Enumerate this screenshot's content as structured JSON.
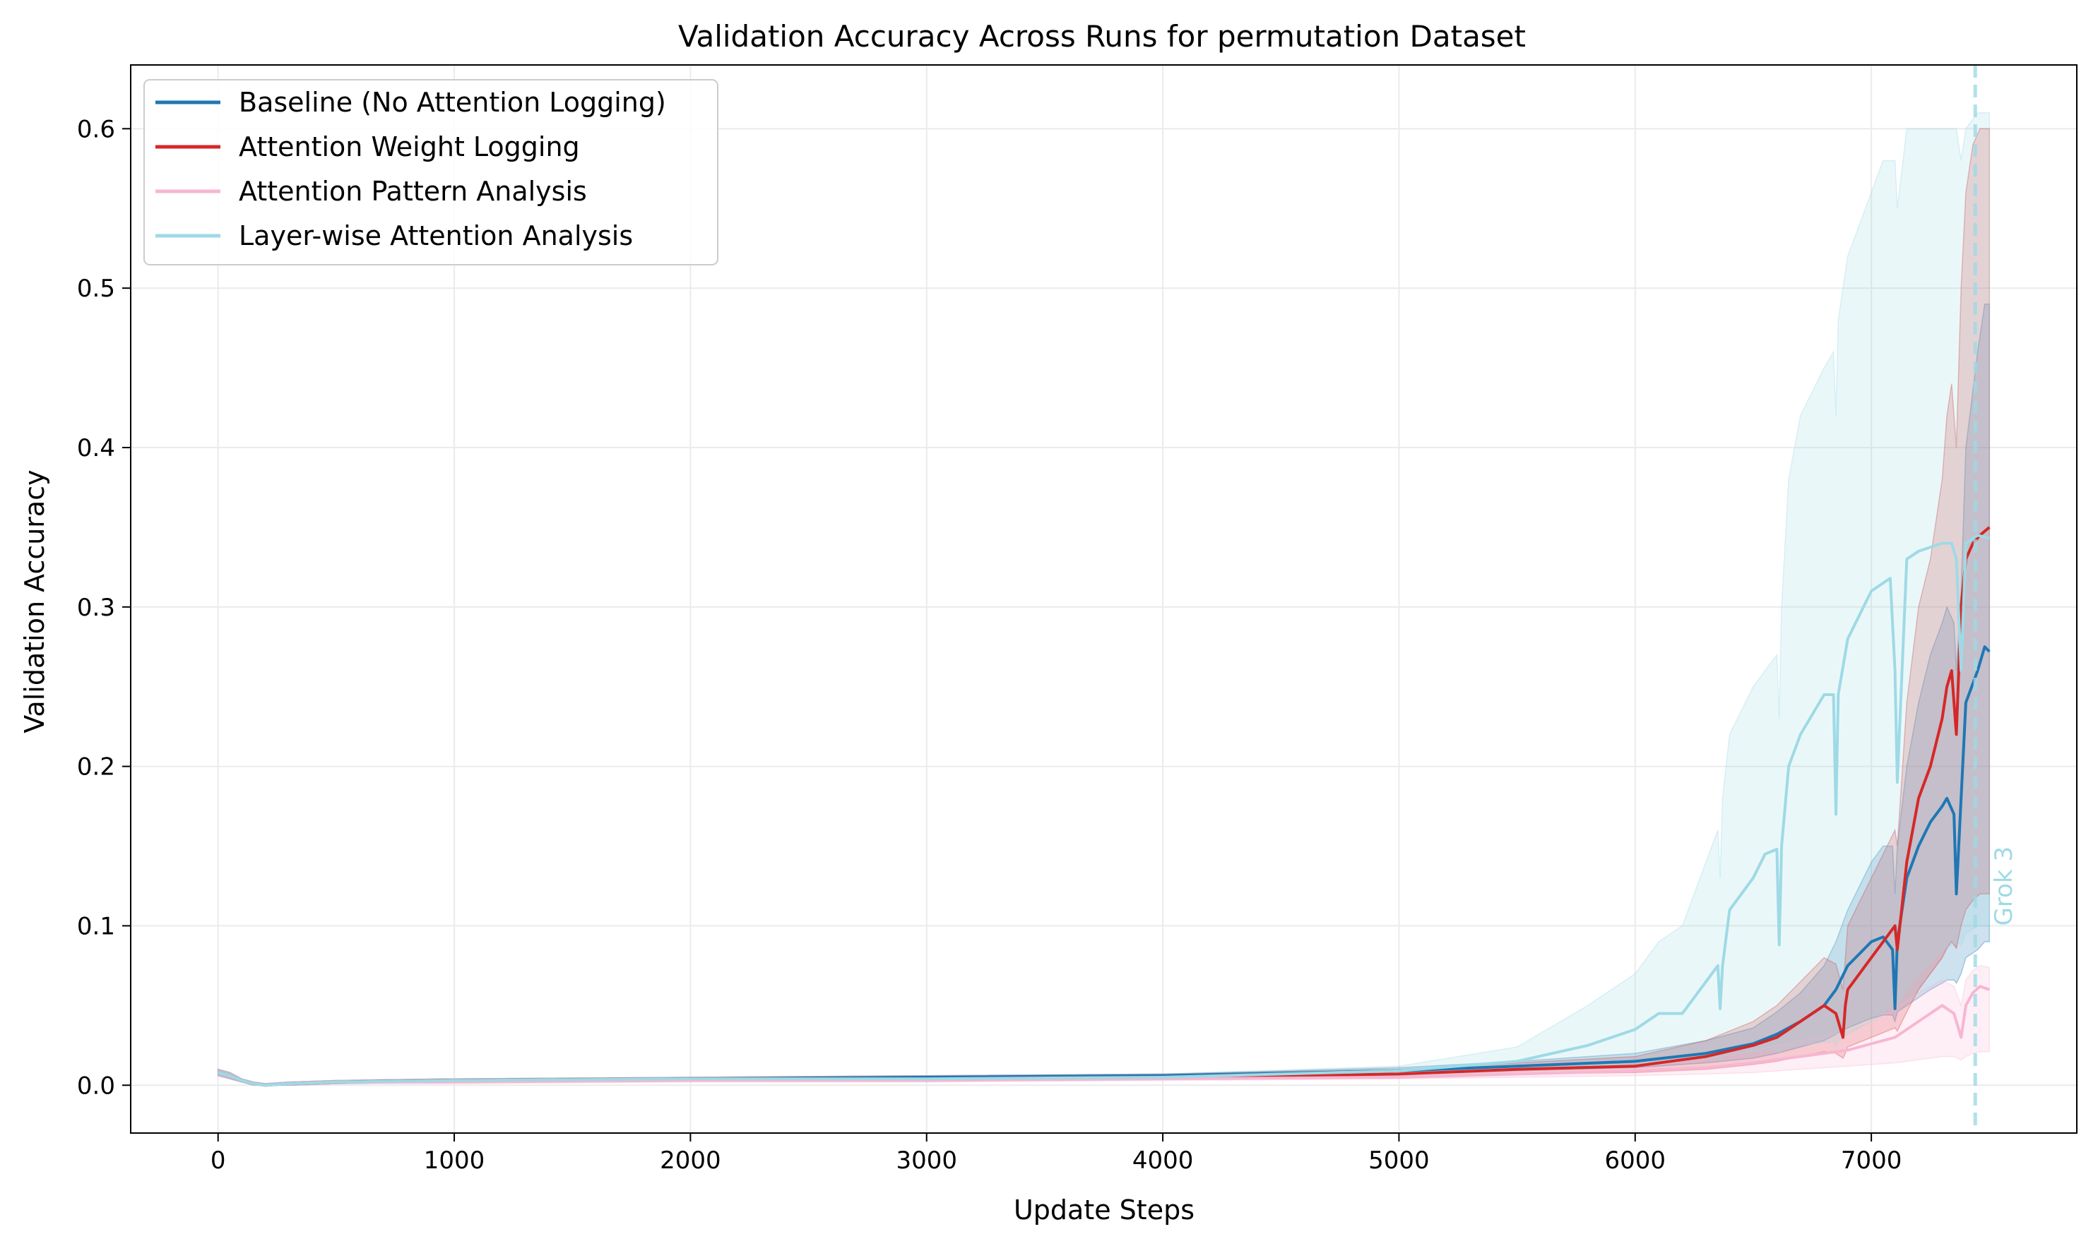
{
  "chart_data": {
    "type": "line",
    "title": "Validation Accuracy Across Runs for permutation Dataset",
    "xlabel": "Update Steps",
    "ylabel": "Validation Accuracy",
    "xlim": [
      -370,
      7870
    ],
    "ylim": [
      -0.03,
      0.64
    ],
    "xticks": [
      0,
      1000,
      2000,
      3000,
      4000,
      5000,
      6000,
      7000
    ],
    "yticks": [
      0.0,
      0.1,
      0.2,
      0.3,
      0.4,
      0.5,
      0.6
    ],
    "xtick_labels": [
      "0",
      "1000",
      "2000",
      "3000",
      "4000",
      "5000",
      "6000",
      "7000"
    ],
    "ytick_labels": [
      "0.0",
      "0.1",
      "0.2",
      "0.3",
      "0.4",
      "0.5",
      "0.6"
    ],
    "grid": true,
    "legend_position": "top-left",
    "annotation": {
      "label": "Grok 3",
      "x": 7440,
      "color": "#9edae5"
    },
    "series": [
      {
        "name": "Baseline (No Attention Logging)",
        "color": "#1f77b4",
        "x": [
          0,
          50,
          100,
          150,
          200,
          300,
          500,
          1000,
          2000,
          3000,
          4000,
          5000,
          5500,
          6000,
          6300,
          6500,
          6600,
          6700,
          6800,
          6850,
          6900,
          7000,
          7050,
          7090,
          7100,
          7110,
          7150,
          7200,
          7250,
          7300,
          7320,
          7350,
          7360,
          7380,
          7400,
          7450,
          7480,
          7500
        ],
        "y": [
          0.008,
          0.006,
          0.003,
          0.001,
          0.0,
          0.001,
          0.002,
          0.003,
          0.004,
          0.005,
          0.006,
          0.009,
          0.012,
          0.015,
          0.02,
          0.026,
          0.032,
          0.04,
          0.05,
          0.06,
          0.075,
          0.09,
          0.093,
          0.085,
          0.048,
          0.09,
          0.13,
          0.15,
          0.165,
          0.175,
          0.18,
          0.17,
          0.12,
          0.18,
          0.24,
          0.26,
          0.275,
          0.272
        ],
        "band_low": [
          0.006,
          0.004,
          0.002,
          0.0,
          0.0,
          0.0,
          0.001,
          0.002,
          0.003,
          0.004,
          0.005,
          0.007,
          0.009,
          0.011,
          0.014,
          0.017,
          0.02,
          0.024,
          0.028,
          0.032,
          0.036,
          0.042,
          0.044,
          0.044,
          0.04,
          0.046,
          0.05,
          0.055,
          0.06,
          0.064,
          0.066,
          0.066,
          0.064,
          0.07,
          0.08,
          0.085,
          0.09,
          0.09
        ],
        "band_high": [
          0.01,
          0.008,
          0.004,
          0.002,
          0.001,
          0.002,
          0.003,
          0.004,
          0.005,
          0.006,
          0.007,
          0.011,
          0.015,
          0.02,
          0.028,
          0.036,
          0.046,
          0.058,
          0.075,
          0.09,
          0.11,
          0.14,
          0.15,
          0.15,
          0.12,
          0.15,
          0.2,
          0.24,
          0.27,
          0.29,
          0.3,
          0.29,
          0.26,
          0.31,
          0.4,
          0.46,
          0.49,
          0.49
        ]
      },
      {
        "name": "Attention Weight Logging",
        "color": "#d62728",
        "x": [
          0,
          50,
          100,
          150,
          200,
          300,
          500,
          1000,
          2000,
          3000,
          4000,
          5000,
          5500,
          6000,
          6300,
          6500,
          6600,
          6700,
          6800,
          6850,
          6880,
          6890,
          6900,
          7000,
          7100,
          7110,
          7150,
          7200,
          7250,
          7300,
          7320,
          7340,
          7360,
          7380,
          7400,
          7430,
          7460,
          7500
        ],
        "y": [
          0.008,
          0.006,
          0.003,
          0.001,
          0.0,
          0.001,
          0.002,
          0.003,
          0.004,
          0.004,
          0.005,
          0.007,
          0.01,
          0.012,
          0.018,
          0.025,
          0.03,
          0.04,
          0.05,
          0.045,
          0.03,
          0.05,
          0.06,
          0.08,
          0.1,
          0.085,
          0.14,
          0.18,
          0.2,
          0.23,
          0.25,
          0.26,
          0.22,
          0.3,
          0.33,
          0.34,
          0.345,
          0.35
        ],
        "band_low": [
          0.006,
          0.004,
          0.002,
          0.0,
          0.0,
          0.0,
          0.001,
          0.002,
          0.003,
          0.003,
          0.004,
          0.005,
          0.007,
          0.008,
          0.01,
          0.013,
          0.015,
          0.018,
          0.021,
          0.02,
          0.017,
          0.02,
          0.024,
          0.03,
          0.036,
          0.034,
          0.046,
          0.06,
          0.07,
          0.08,
          0.086,
          0.09,
          0.086,
          0.1,
          0.11,
          0.116,
          0.12,
          0.12
        ],
        "band_high": [
          0.01,
          0.008,
          0.004,
          0.002,
          0.001,
          0.002,
          0.003,
          0.004,
          0.005,
          0.006,
          0.007,
          0.01,
          0.014,
          0.018,
          0.028,
          0.04,
          0.05,
          0.065,
          0.08,
          0.076,
          0.06,
          0.08,
          0.1,
          0.13,
          0.16,
          0.15,
          0.24,
          0.3,
          0.33,
          0.38,
          0.42,
          0.44,
          0.4,
          0.5,
          0.56,
          0.59,
          0.6,
          0.6
        ]
      },
      {
        "name": "Attention Pattern Analysis",
        "color": "#f7b6d2",
        "x": [
          0,
          50,
          100,
          150,
          200,
          300,
          500,
          1000,
          2000,
          3000,
          4000,
          5000,
          5500,
          6000,
          6300,
          6500,
          6700,
          6900,
          7000,
          7100,
          7200,
          7300,
          7350,
          7380,
          7400,
          7430,
          7460,
          7500
        ],
        "y": [
          0.008,
          0.006,
          0.003,
          0.001,
          0.0,
          0.001,
          0.002,
          0.002,
          0.003,
          0.003,
          0.004,
          0.005,
          0.007,
          0.009,
          0.011,
          0.014,
          0.018,
          0.022,
          0.026,
          0.03,
          0.04,
          0.05,
          0.045,
          0.03,
          0.05,
          0.058,
          0.062,
          0.06
        ],
        "band_low": [
          0.006,
          0.004,
          0.002,
          0.0,
          0.0,
          0.0,
          0.001,
          0.001,
          0.002,
          0.002,
          0.003,
          0.004,
          0.005,
          0.006,
          0.007,
          0.008,
          0.01,
          0.012,
          0.013,
          0.014,
          0.016,
          0.018,
          0.018,
          0.016,
          0.018,
          0.02,
          0.021,
          0.021
        ],
        "band_high": [
          0.01,
          0.008,
          0.004,
          0.002,
          0.001,
          0.002,
          0.003,
          0.003,
          0.004,
          0.004,
          0.005,
          0.006,
          0.009,
          0.012,
          0.016,
          0.022,
          0.028,
          0.034,
          0.04,
          0.048,
          0.058,
          0.066,
          0.062,
          0.05,
          0.066,
          0.072,
          0.075,
          0.074
        ]
      },
      {
        "name": "Layer-wise Attention Analysis",
        "color": "#9edae5",
        "x": [
          0,
          50,
          100,
          150,
          200,
          300,
          500,
          1000,
          2000,
          3000,
          4000,
          5000,
          5500,
          5800,
          6000,
          6100,
          6200,
          6300,
          6350,
          6360,
          6370,
          6400,
          6500,
          6550,
          6600,
          6610,
          6620,
          6650,
          6700,
          6800,
          6840,
          6850,
          6860,
          6900,
          7000,
          7050,
          7080,
          7100,
          7110,
          7150,
          7200,
          7300,
          7340,
          7360,
          7380,
          7400,
          7450,
          7500
        ],
        "y": [
          0.008,
          0.006,
          0.003,
          0.001,
          0.0,
          0.001,
          0.002,
          0.003,
          0.004,
          0.004,
          0.005,
          0.009,
          0.015,
          0.025,
          0.035,
          0.045,
          0.045,
          0.065,
          0.075,
          0.048,
          0.075,
          0.11,
          0.13,
          0.145,
          0.148,
          0.088,
          0.15,
          0.2,
          0.22,
          0.245,
          0.245,
          0.17,
          0.245,
          0.28,
          0.31,
          0.315,
          0.318,
          0.26,
          0.19,
          0.33,
          0.335,
          0.34,
          0.34,
          0.33,
          0.26,
          0.34,
          0.345,
          0.343
        ],
        "band_low": [
          0.006,
          0.004,
          0.002,
          0.0,
          0.0,
          0.0,
          0.001,
          0.002,
          0.003,
          0.003,
          0.004,
          0.006,
          0.009,
          0.012,
          0.014,
          0.015,
          0.016,
          0.017,
          0.018,
          0.016,
          0.018,
          0.02,
          0.021,
          0.022,
          0.022,
          0.02,
          0.022,
          0.024,
          0.025,
          0.027,
          0.027,
          0.025,
          0.028,
          0.032,
          0.04,
          0.045,
          0.05,
          0.052,
          0.05,
          0.06,
          0.07,
          0.085,
          0.088,
          0.09,
          0.088,
          0.095,
          0.1,
          0.1
        ],
        "band_high": [
          0.01,
          0.008,
          0.004,
          0.002,
          0.001,
          0.002,
          0.003,
          0.004,
          0.005,
          0.006,
          0.007,
          0.012,
          0.024,
          0.05,
          0.07,
          0.09,
          0.1,
          0.14,
          0.16,
          0.13,
          0.18,
          0.22,
          0.25,
          0.26,
          0.27,
          0.23,
          0.3,
          0.38,
          0.42,
          0.45,
          0.46,
          0.42,
          0.48,
          0.52,
          0.56,
          0.58,
          0.58,
          0.58,
          0.55,
          0.6,
          0.6,
          0.6,
          0.6,
          0.6,
          0.58,
          0.6,
          0.61,
          0.61
        ]
      }
    ]
  }
}
